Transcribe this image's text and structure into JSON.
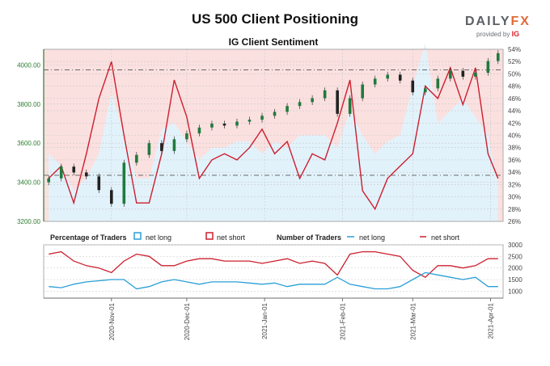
{
  "header": {
    "title": "US 500 Client Positioning",
    "subtitle": "IG Client Sentiment",
    "logo_main": "DAILY",
    "logo_fx": "FX",
    "logo_sub": "provided by",
    "logo_ig": "IG"
  },
  "colors": {
    "net_long": "#2a9fd6",
    "net_short": "#cc1f2e",
    "candle_up": "#1f7a3d",
    "candle_down": "#222222",
    "price_axis": "#2e7d32",
    "fill_short": "#fbe0e0",
    "fill_long": "#e2f2fb"
  },
  "legend": {
    "percentage_label": "Percentage of Traders",
    "number_label": "Number of Traders",
    "net_long": "net long",
    "net_short": "net short"
  },
  "chart_data": {
    "type": "line",
    "price_axis": {
      "ticks": [
        "3200.00",
        "3400.00",
        "3600.00",
        "3800.00",
        "4000.00"
      ],
      "ylim": [
        3200,
        4080
      ]
    },
    "pct_axis": {
      "ticks": [
        "26%",
        "28%",
        "30%",
        "32%",
        "34%",
        "36%",
        "38%",
        "40%",
        "42%",
        "44%",
        "46%",
        "48%",
        "50%",
        "52%",
        "54%"
      ],
      "ylim": [
        26,
        54
      ]
    },
    "count_axis": {
      "ticks": [
        "1000",
        "1500",
        "2000",
        "2500",
        "3000"
      ],
      "ylim": [
        700,
        3000
      ]
    },
    "x_ticks": [
      "2020-Nov-01",
      "2020-Dec-01",
      "2021-Jan-01",
      "2021-Feb-01",
      "2021-Mar-01",
      "2021-Apr-01"
    ],
    "reference_lines": {
      "price": 3975,
      "pct": 33.5
    },
    "price_close": {
      "x": [
        "2020-Oct-07",
        "2020-Oct-12",
        "2020-Oct-17",
        "2020-Oct-22",
        "2020-Oct-27",
        "2020-Nov-01",
        "2020-Nov-06",
        "2020-Nov-11",
        "2020-Nov-16",
        "2020-Nov-21",
        "2020-Nov-26",
        "2020-Dec-01",
        "2020-Dec-06",
        "2020-Dec-11",
        "2020-Dec-16",
        "2020-Dec-21",
        "2020-Dec-26",
        "2020-Dec-31",
        "2021-Jan-05",
        "2021-Jan-10",
        "2021-Jan-15",
        "2021-Jan-20",
        "2021-Jan-25",
        "2021-Jan-30",
        "2021-Feb-04",
        "2021-Feb-09",
        "2021-Feb-14",
        "2021-Feb-19",
        "2021-Feb-24",
        "2021-Mar-01",
        "2021-Mar-06",
        "2021-Mar-11",
        "2021-Mar-16",
        "2021-Mar-21",
        "2021-Mar-26",
        "2021-Mar-31",
        "2021-Apr-04"
      ],
      "values": [
        3420,
        3480,
        3450,
        3430,
        3360,
        3290,
        3500,
        3540,
        3600,
        3560,
        3620,
        3650,
        3680,
        3700,
        3690,
        3710,
        3720,
        3740,
        3760,
        3790,
        3810,
        3830,
        3870,
        3750,
        3830,
        3900,
        3930,
        3950,
        3920,
        3860,
        3880,
        3930,
        3970,
        3940,
        3960,
        4020,
        4060
      ]
    },
    "series": [
      {
        "name": "net long",
        "pct_values": [
          37,
          35,
          31,
          33,
          37,
          47,
          40,
          33,
          33,
          41,
          42,
          39,
          36,
          38,
          38,
          39,
          39,
          37,
          39,
          38,
          40,
          40,
          40,
          38,
          44,
          40,
          37,
          39,
          40,
          48,
          55,
          42,
          44,
          46,
          43,
          40,
          32
        ]
      },
      {
        "name": "net short",
        "pct_values": [
          33,
          35,
          29,
          37,
          46,
          52,
          40,
          29,
          29,
          37,
          49,
          43,
          33,
          36,
          37,
          36,
          38,
          41,
          37,
          39,
          33,
          37,
          36,
          42,
          49,
          31,
          28,
          33,
          35,
          37,
          48,
          46,
          51,
          45,
          51,
          37,
          33
        ]
      },
      {
        "name": "net long",
        "count_values": [
          1200,
          1150,
          1300,
          1400,
          1450,
          1500,
          1500,
          1100,
          1200,
          1400,
          1500,
          1400,
          1300,
          1400,
          1400,
          1400,
          1350,
          1300,
          1350,
          1200,
          1300,
          1300,
          1300,
          1600,
          1300,
          1200,
          1100,
          1100,
          1200,
          1500,
          1800,
          1700,
          1600,
          1500,
          1600,
          1200,
          1200
        ]
      },
      {
        "name": "net short",
        "count_values": [
          2600,
          2700,
          2300,
          2100,
          2000,
          1800,
          2300,
          2600,
          2500,
          2100,
          2100,
          2300,
          2400,
          2400,
          2300,
          2300,
          2300,
          2200,
          2300,
          2400,
          2200,
          2300,
          2200,
          1700,
          2600,
          2700,
          2700,
          2600,
          2500,
          1900,
          1600,
          2100,
          2100,
          2000,
          2100,
          2400,
          2400
        ]
      }
    ]
  }
}
